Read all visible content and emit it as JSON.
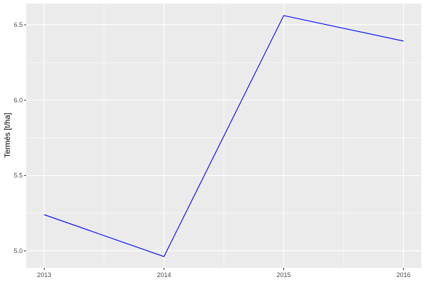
{
  "chart_data": {
    "type": "line",
    "title": "",
    "xlabel": "",
    "ylabel": "Termés [t/ha]",
    "x": [
      2013,
      2014,
      2015,
      2016
    ],
    "series": [
      {
        "values": [
          5.24,
          4.962,
          6.561,
          6.392
        ],
        "color": "#0000ff"
      }
    ],
    "xticks": [
      2013,
      2014,
      2015,
      2016
    ],
    "xtick_labels": [
      "2013",
      "2014",
      "2015",
      "2016"
    ],
    "yticks": [
      5.0,
      5.5,
      6.0,
      6.5
    ],
    "ytick_labels": [
      "5.0",
      "5.5",
      "6.0",
      "6.5"
    ],
    "xlim": [
      2012.85,
      2016.15
    ],
    "ylim": [
      4.887,
      6.641
    ],
    "grid": true,
    "panel_background": "#ebebeb",
    "grid_color": "#ffffff"
  }
}
